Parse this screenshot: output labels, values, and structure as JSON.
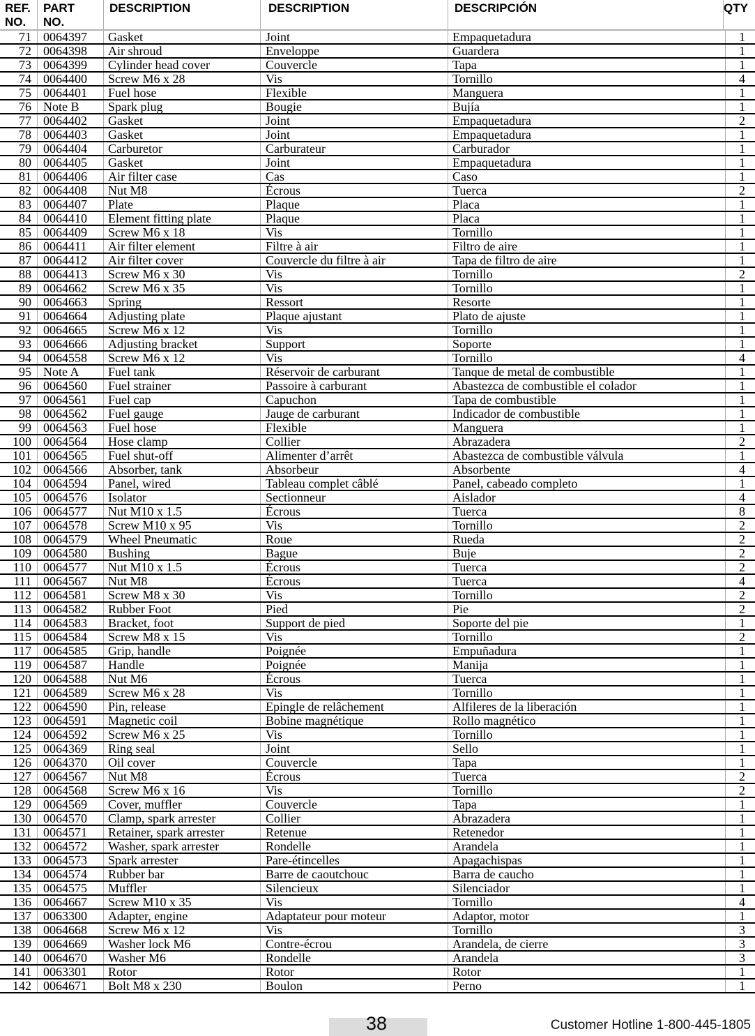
{
  "table": {
    "header": {
      "ref_line1": "REF.",
      "ref_line2": "NO.",
      "part_line1": "PART",
      "part_line2": "NO.",
      "desc_en": "DESCRIPTION",
      "desc_fr": "DESCRIPTION",
      "desc_es": "DESCRIPCIÓN",
      "qty": "QTY"
    },
    "rows": [
      {
        "ref": "71",
        "part": "0064397",
        "desc_en": "Gasket",
        "desc_fr": "Joint",
        "desc_es": "Empaquetadura",
        "qty": "1"
      },
      {
        "ref": "72",
        "part": "0064398",
        "desc_en": "Air shroud",
        "desc_fr": "Enveloppe",
        "desc_es": "Guardera",
        "qty": "1"
      },
      {
        "ref": "73",
        "part": "0064399",
        "desc_en": "Cylinder head cover",
        "desc_fr": "Couvercle",
        "desc_es": "Tapa",
        "qty": "1"
      },
      {
        "ref": "74",
        "part": "0064400",
        "desc_en": "Screw M6 x 28",
        "desc_fr": "Vis",
        "desc_es": "Tornillo",
        "qty": "4"
      },
      {
        "ref": "75",
        "part": "0064401",
        "desc_en": "Fuel hose",
        "desc_fr": "Flexible",
        "desc_es": "Manguera",
        "qty": "1"
      },
      {
        "ref": "76",
        "part": "Note B",
        "desc_en": "Spark plug",
        "desc_fr": "Bougie",
        "desc_es": "Bujía",
        "qty": "1"
      },
      {
        "ref": "77",
        "part": "0064402",
        "desc_en": "Gasket",
        "desc_fr": "Joint",
        "desc_es": "Empaquetadura",
        "qty": "2"
      },
      {
        "ref": "78",
        "part": "0064403",
        "desc_en": "Gasket",
        "desc_fr": "Joint",
        "desc_es": "Empaquetadura",
        "qty": "1"
      },
      {
        "ref": "79",
        "part": "0064404",
        "desc_en": "Carburetor",
        "desc_fr": "Carburateur",
        "desc_es": "Carburador",
        "qty": "1"
      },
      {
        "ref": "80",
        "part": "0064405",
        "desc_en": "Gasket",
        "desc_fr": "Joint",
        "desc_es": "Empaquetadura",
        "qty": "1"
      },
      {
        "ref": "81",
        "part": "0064406",
        "desc_en": "Air filter case",
        "desc_fr": "Cas",
        "desc_es": "Caso",
        "qty": "1"
      },
      {
        "ref": "82",
        "part": "0064408",
        "desc_en": "Nut M8",
        "desc_fr": "Écrous",
        "desc_es": "Tuerca",
        "qty": "2"
      },
      {
        "ref": "83",
        "part": "0064407",
        "desc_en": "Plate",
        "desc_fr": "Plaque",
        "desc_es": "Placa",
        "qty": "1"
      },
      {
        "ref": "84",
        "part": "0064410",
        "desc_en": "Element fitting plate",
        "desc_fr": "Plaque",
        "desc_es": "Placa",
        "qty": "1"
      },
      {
        "ref": "85",
        "part": "0064409",
        "desc_en": "Screw M6 x 18",
        "desc_fr": "Vis",
        "desc_es": "Tornillo",
        "qty": "1"
      },
      {
        "ref": "86",
        "part": "0064411",
        "desc_en": "Air filter element",
        "desc_fr": "Filtre à air",
        "desc_es": "Filtro de aire",
        "qty": "1"
      },
      {
        "ref": "87",
        "part": "0064412",
        "desc_en": "Air filter cover",
        "desc_fr": "Couvercle du filtre à air",
        "desc_es": "Tapa de filtro de aire",
        "qty": "1"
      },
      {
        "ref": "88",
        "part": "0064413",
        "desc_en": "Screw M6 x 30",
        "desc_fr": "Vis",
        "desc_es": "Tornillo",
        "qty": "2"
      },
      {
        "ref": "89",
        "part": "0064662",
        "desc_en": "Screw M6 x 35",
        "desc_fr": "Vis",
        "desc_es": "Tornillo",
        "qty": "1"
      },
      {
        "ref": "90",
        "part": "0064663",
        "desc_en": "Spring",
        "desc_fr": "Ressort",
        "desc_es": "Resorte",
        "qty": "1"
      },
      {
        "ref": "91",
        "part": "0064664",
        "desc_en": "Adjusting plate",
        "desc_fr": "Plaque ajustant",
        "desc_es": "Plato de ajuste",
        "qty": "1"
      },
      {
        "ref": "92",
        "part": "0064665",
        "desc_en": "Screw M6 x 12",
        "desc_fr": "Vis",
        "desc_es": "Tornillo",
        "qty": "1"
      },
      {
        "ref": "93",
        "part": "0064666",
        "desc_en": "Adjusting bracket",
        "desc_fr": "Support",
        "desc_es": "Soporte",
        "qty": "1"
      },
      {
        "ref": "94",
        "part": "0064558",
        "desc_en": "Screw M6 x 12",
        "desc_fr": "Vis",
        "desc_es": "Tornillo",
        "qty": "4"
      },
      {
        "ref": "95",
        "part": "Note A",
        "desc_en": "Fuel tank",
        "desc_fr": "Réservoir de carburant",
        "desc_es": "Tanque de metal de combustible",
        "qty": "1"
      },
      {
        "ref": "96",
        "part": "0064560",
        "desc_en": "Fuel strainer",
        "desc_fr": "Passoire à carburant",
        "desc_es": "Abastezca de combustible el colador",
        "qty": "1"
      },
      {
        "ref": "97",
        "part": "0064561",
        "desc_en": "Fuel cap",
        "desc_fr": "Capuchon",
        "desc_es": "Tapa de combustible",
        "qty": "1"
      },
      {
        "ref": "98",
        "part": "0064562",
        "desc_en": "Fuel gauge",
        "desc_fr": "Jauge de carburant",
        "desc_es": "Indicador de combustible",
        "qty": "1"
      },
      {
        "ref": "99",
        "part": "0064563",
        "desc_en": "Fuel hose",
        "desc_fr": "Flexible",
        "desc_es": "Manguera",
        "qty": "1"
      },
      {
        "ref": "100",
        "part": "0064564",
        "desc_en": "Hose clamp",
        "desc_fr": "Collier",
        "desc_es": "Abrazadera",
        "qty": "2"
      },
      {
        "ref": "101",
        "part": "0064565",
        "desc_en": "Fuel shut-off",
        "desc_fr": "Alimenter d’arrêt",
        "desc_es": "Abastezca de combustible válvula",
        "qty": "1"
      },
      {
        "ref": "102",
        "part": "0064566",
        "desc_en": "Absorber, tank",
        "desc_fr": "Absorbeur",
        "desc_es": "Absorbente",
        "qty": "4"
      },
      {
        "ref": "104",
        "part": "0064594",
        "desc_en": "Panel, wired",
        "desc_fr": "Tableau complet câblé",
        "desc_es": "Panel, cabeado completo",
        "qty": "1"
      },
      {
        "ref": "105",
        "part": "0064576",
        "desc_en": "Isolator",
        "desc_fr": "Sectionneur",
        "desc_es": "Aislador",
        "qty": "4"
      },
      {
        "ref": "106",
        "part": "0064577",
        "desc_en": "Nut M10 x 1.5",
        "desc_fr": "Écrous",
        "desc_es": "Tuerca",
        "qty": "8"
      },
      {
        "ref": "107",
        "part": "0064578",
        "desc_en": "Screw M10 x 95",
        "desc_fr": "Vis",
        "desc_es": "Tornillo",
        "qty": "2"
      },
      {
        "ref": "108",
        "part": "0064579",
        "desc_en": "Wheel Pneumatic",
        "desc_fr": "Roue",
        "desc_es": "Rueda",
        "qty": "2"
      },
      {
        "ref": "109",
        "part": "0064580",
        "desc_en": "Bushing",
        "desc_fr": "Bague",
        "desc_es": "Buje",
        "qty": "2"
      },
      {
        "ref": "110",
        "part": "0064577",
        "desc_en": "Nut M10 x 1.5",
        "desc_fr": "Écrous",
        "desc_es": "Tuerca",
        "qty": "2"
      },
      {
        "ref": "111",
        "part": "0064567",
        "desc_en": "Nut M8",
        "desc_fr": "Écrous",
        "desc_es": "Tuerca",
        "qty": "4"
      },
      {
        "ref": "112",
        "part": "0064581",
        "desc_en": "Screw M8 x 30",
        "desc_fr": "Vis",
        "desc_es": "Tornillo",
        "qty": "2"
      },
      {
        "ref": "113",
        "part": "0064582",
        "desc_en": "Rubber Foot",
        "desc_fr": "Pied",
        "desc_es": "Pie",
        "qty": "2"
      },
      {
        "ref": "114",
        "part": "0064583",
        "desc_en": "Bracket, foot",
        "desc_fr": "Support de pied",
        "desc_es": "Soporte del pie",
        "qty": "1"
      },
      {
        "ref": "115",
        "part": "0064584",
        "desc_en": "Screw M8 x 15",
        "desc_fr": "Vis",
        "desc_es": "Tornillo",
        "qty": "2"
      },
      {
        "ref": "117",
        "part": "0064585",
        "desc_en": "Grip, handle",
        "desc_fr": "Poignée",
        "desc_es": "Empuñadura",
        "qty": "1"
      },
      {
        "ref": "119",
        "part": "0064587",
        "desc_en": "Handle",
        "desc_fr": "Poignée",
        "desc_es": "Manija",
        "qty": "1"
      },
      {
        "ref": "120",
        "part": "0064588",
        "desc_en": "Nut M6",
        "desc_fr": "Écrous",
        "desc_es": "Tuerca",
        "qty": "1"
      },
      {
        "ref": "121",
        "part": "0064589",
        "desc_en": "Screw M6 x 28",
        "desc_fr": "Vis",
        "desc_es": "Tornillo",
        "qty": "1"
      },
      {
        "ref": "122",
        "part": "0064590",
        "desc_en": "Pin, release",
        "desc_fr": "Epingle de relâchement",
        "desc_es": "Alfileres de la liberación",
        "qty": "1"
      },
      {
        "ref": "123",
        "part": "0064591",
        "desc_en": "Magnetic coil",
        "desc_fr": "Bobine magnétique",
        "desc_es": "Rollo magnético",
        "qty": "1"
      },
      {
        "ref": "124",
        "part": "0064592",
        "desc_en": "Screw M6 x 25",
        "desc_fr": "Vis",
        "desc_es": "Tornillo",
        "qty": "1"
      },
      {
        "ref": "125",
        "part": "0064369",
        "desc_en": "Ring seal",
        "desc_fr": "Joint",
        "desc_es": "Sello",
        "qty": "1"
      },
      {
        "ref": "126",
        "part": "0064370",
        "desc_en": "Oil cover",
        "desc_fr": "Couvercle",
        "desc_es": "Tapa",
        "qty": "1"
      },
      {
        "ref": "127",
        "part": "0064567",
        "desc_en": "Nut M8",
        "desc_fr": "Écrous",
        "desc_es": "Tuerca",
        "qty": "2"
      },
      {
        "ref": "128",
        "part": "0064568",
        "desc_en": "Screw M6 x 16",
        "desc_fr": "Vis",
        "desc_es": "Tornillo",
        "qty": "2"
      },
      {
        "ref": "129",
        "part": "0064569",
        "desc_en": "Cover, muffler",
        "desc_fr": "Couvercle",
        "desc_es": "Tapa",
        "qty": "1"
      },
      {
        "ref": "130",
        "part": "0064570",
        "desc_en": "Clamp, spark arrester",
        "desc_fr": "Collier",
        "desc_es": "Abrazadera",
        "qty": "1"
      },
      {
        "ref": "131",
        "part": "0064571",
        "desc_en": "Retainer, spark arrester",
        "desc_fr": "Retenue",
        "desc_es": "Retenedor",
        "qty": "1"
      },
      {
        "ref": "132",
        "part": "0064572",
        "desc_en": "Washer, spark arrester",
        "desc_fr": "Rondelle",
        "desc_es": "Arandela",
        "qty": "1"
      },
      {
        "ref": "133",
        "part": "0064573",
        "desc_en": "Spark arrester",
        "desc_fr": "Pare-étincelles",
        "desc_es": "Apagachispas",
        "qty": "1"
      },
      {
        "ref": "134",
        "part": "0064574",
        "desc_en": "Rubber bar",
        "desc_fr": "Barre de caoutchouc",
        "desc_es": "Barra de caucho",
        "qty": "1"
      },
      {
        "ref": "135",
        "part": "0064575",
        "desc_en": "Muffler",
        "desc_fr": "Silencieux",
        "desc_es": "Silenciador",
        "qty": "1"
      },
      {
        "ref": "136",
        "part": "0064667",
        "desc_en": "Screw M10 x 35",
        "desc_fr": "Vis",
        "desc_es": "Tornillo",
        "qty": "4"
      },
      {
        "ref": "137",
        "part": "0063300",
        "desc_en": "Adapter, engine",
        "desc_fr": "Adaptateur pour moteur",
        "desc_es": "Adaptor, motor",
        "qty": "1"
      },
      {
        "ref": "138",
        "part": "0064668",
        "desc_en": "Screw M6 x 12",
        "desc_fr": "Vis",
        "desc_es": "Tornillo",
        "qty": "3"
      },
      {
        "ref": "139",
        "part": "0064669",
        "desc_en": "Washer lock M6",
        "desc_fr": "Contre-écrou",
        "desc_es": "Arandela, de cierre",
        "qty": "3"
      },
      {
        "ref": "140",
        "part": "0064670",
        "desc_en": "Washer M6",
        "desc_fr": "Rondelle",
        "desc_es": "Arandela",
        "qty": "3"
      },
      {
        "ref": "141",
        "part": "0063301",
        "desc_en": "Rotor",
        "desc_fr": "Rotor",
        "desc_es": "Rotor",
        "qty": "1"
      },
      {
        "ref": "142",
        "part": "0064671",
        "desc_en": "Bolt M8 x 230",
        "desc_fr": "Boulon",
        "desc_es": "Perno",
        "qty": "1"
      }
    ]
  },
  "footer": {
    "page_number": "38",
    "hotline": "Customer Hotline 1-800-445-1805"
  }
}
